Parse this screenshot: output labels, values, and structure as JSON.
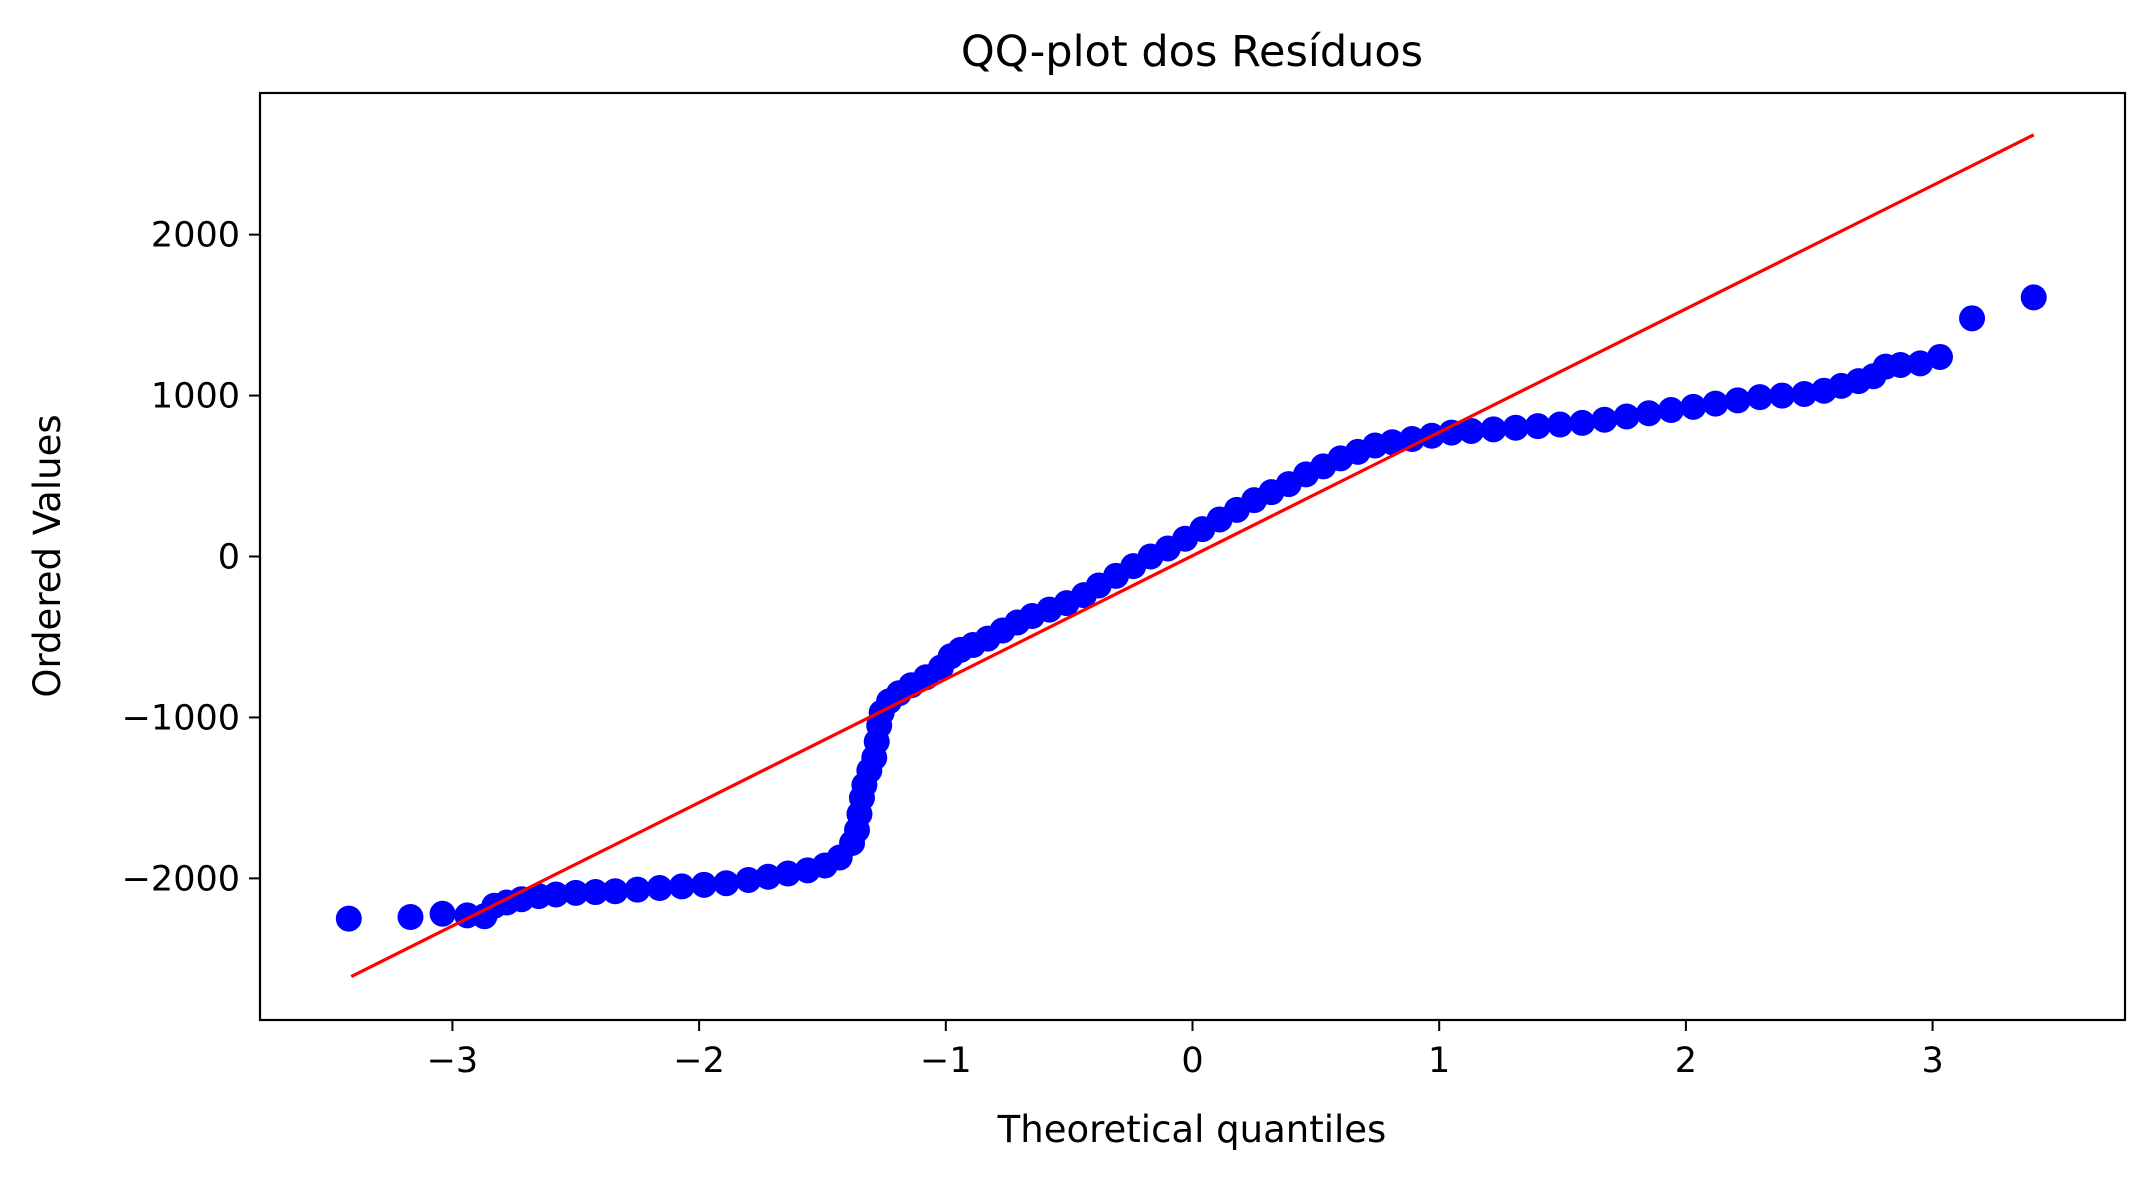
{
  "chart_data": {
    "type": "scatter",
    "title": "QQ-plot dos Resíduos",
    "xlabel": "Theoretical quantiles",
    "ylabel": "Ordered Values",
    "xlim": [
      -3.78,
      3.78
    ],
    "ylim": [
      -2880,
      2880
    ],
    "x_ticks": [
      -3,
      -2,
      -1,
      0,
      1,
      2,
      3
    ],
    "x_tick_labels": [
      "−3",
      "−2",
      "−1",
      "0",
      "1",
      "2",
      "3"
    ],
    "y_ticks": [
      -2000,
      -1000,
      0,
      1000,
      2000
    ],
    "y_tick_labels": [
      "−2000",
      "−1000",
      "0",
      "1000",
      "2000"
    ],
    "grid": false,
    "legend": "none",
    "series": [
      {
        "kind": "points",
        "color": "#0000ff",
        "points": [
          [
            -3.42,
            -2250
          ],
          [
            -3.17,
            -2240
          ],
          [
            -3.04,
            -2220
          ],
          [
            -2.94,
            -2230
          ],
          [
            -2.87,
            -2235
          ],
          [
            -2.83,
            -2170
          ],
          [
            -2.78,
            -2150
          ],
          [
            -2.72,
            -2130
          ],
          [
            -2.65,
            -2110
          ],
          [
            -2.58,
            -2100
          ],
          [
            -2.5,
            -2090
          ],
          [
            -2.42,
            -2085
          ],
          [
            -2.34,
            -2080
          ],
          [
            -2.25,
            -2070
          ],
          [
            -2.16,
            -2060
          ],
          [
            -2.07,
            -2050
          ],
          [
            -1.98,
            -2040
          ],
          [
            -1.89,
            -2030
          ],
          [
            -1.8,
            -2010
          ],
          [
            -1.72,
            -1990
          ],
          [
            -1.64,
            -1970
          ],
          [
            -1.56,
            -1950
          ],
          [
            -1.49,
            -1920
          ],
          [
            -1.43,
            -1870
          ],
          [
            -1.38,
            -1780
          ],
          [
            -1.36,
            -1700
          ],
          [
            -1.35,
            -1600
          ],
          [
            -1.34,
            -1500
          ],
          [
            -1.33,
            -1420
          ],
          [
            -1.31,
            -1330
          ],
          [
            -1.29,
            -1250
          ],
          [
            -1.28,
            -1150
          ],
          [
            -1.27,
            -1050
          ],
          [
            -1.26,
            -970
          ],
          [
            -1.23,
            -900
          ],
          [
            -1.19,
            -850
          ],
          [
            -1.14,
            -800
          ],
          [
            -1.08,
            -750
          ],
          [
            -1.02,
            -690
          ],
          [
            -0.98,
            -620
          ],
          [
            -0.94,
            -580
          ],
          [
            -0.89,
            -550
          ],
          [
            -0.83,
            -510
          ],
          [
            -0.77,
            -460
          ],
          [
            -0.71,
            -410
          ],
          [
            -0.65,
            -370
          ],
          [
            -0.58,
            -330
          ],
          [
            -0.51,
            -290
          ],
          [
            -0.44,
            -240
          ],
          [
            -0.38,
            -180
          ],
          [
            -0.31,
            -120
          ],
          [
            -0.24,
            -60
          ],
          [
            -0.17,
            0
          ],
          [
            -0.1,
            50
          ],
          [
            -0.03,
            110
          ],
          [
            0.04,
            170
          ],
          [
            0.11,
            230
          ],
          [
            0.18,
            290
          ],
          [
            0.25,
            350
          ],
          [
            0.32,
            400
          ],
          [
            0.39,
            450
          ],
          [
            0.46,
            510
          ],
          [
            0.53,
            560
          ],
          [
            0.6,
            610
          ],
          [
            0.67,
            650
          ],
          [
            0.74,
            690
          ],
          [
            0.81,
            710
          ],
          [
            0.89,
            730
          ],
          [
            0.97,
            750
          ],
          [
            1.05,
            770
          ],
          [
            1.13,
            780
          ],
          [
            1.22,
            790
          ],
          [
            1.31,
            800
          ],
          [
            1.4,
            810
          ],
          [
            1.49,
            820
          ],
          [
            1.58,
            830
          ],
          [
            1.67,
            850
          ],
          [
            1.76,
            870
          ],
          [
            1.85,
            890
          ],
          [
            1.94,
            910
          ],
          [
            2.03,
            930
          ],
          [
            2.12,
            950
          ],
          [
            2.21,
            970
          ],
          [
            2.3,
            990
          ],
          [
            2.39,
            1000
          ],
          [
            2.48,
            1010
          ],
          [
            2.56,
            1030
          ],
          [
            2.63,
            1060
          ],
          [
            2.7,
            1090
          ],
          [
            2.76,
            1120
          ],
          [
            2.81,
            1180
          ],
          [
            2.87,
            1190
          ],
          [
            2.95,
            1200
          ],
          [
            3.03,
            1240
          ],
          [
            3.16,
            1480
          ],
          [
            3.41,
            1610
          ]
        ]
      },
      {
        "kind": "line",
        "color": "#ff0000",
        "points": [
          [
            -3.41,
            -2610
          ],
          [
            3.41,
            2620
          ]
        ]
      }
    ]
  }
}
